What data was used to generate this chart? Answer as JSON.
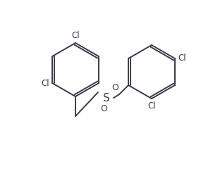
{
  "bg_color": "#ffffff",
  "line_color": "#3a3a4a",
  "text_color": "#3a3a4a",
  "label_S": "S",
  "label_O": "O",
  "label_Cl": "Cl",
  "font_size_atom": 9,
  "font_size_Cl": 8.5,
  "line_width": 1.4
}
